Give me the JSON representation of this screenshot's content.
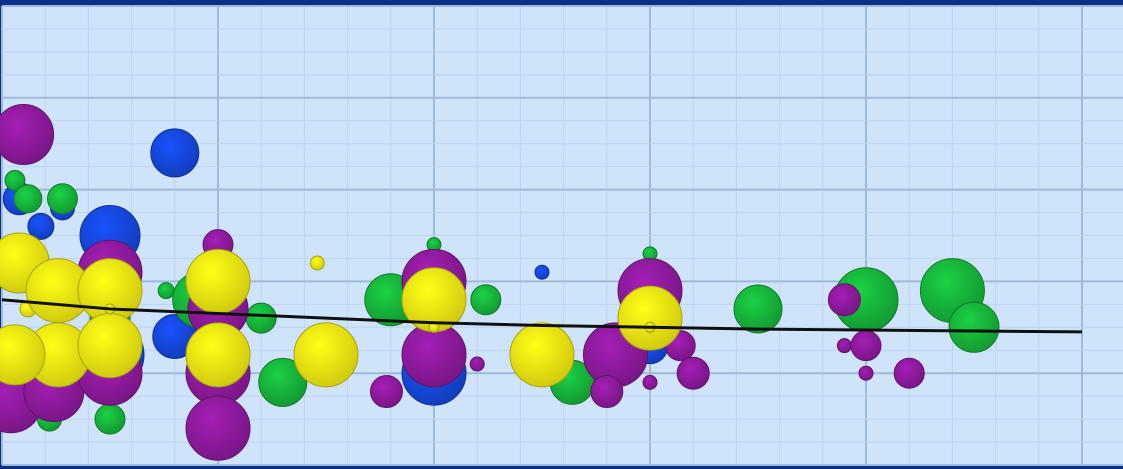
{
  "colors": {
    "frame": "#0b2f86",
    "plot_bg": "#cfe4fb",
    "grid_minor": "#bcd4ee",
    "grid_major": "#9fb9d8",
    "trend": "#111111",
    "blue": "#1546d8",
    "green": "#16b23a",
    "purple": "#8c1a9a",
    "yellow": "#f2ea12"
  },
  "chart_data": {
    "type": "scatter",
    "subtype": "bubble",
    "title": "",
    "xlabel": "",
    "ylabel": "",
    "xlim": [
      0,
      25
    ],
    "ylim": [
      0,
      5
    ],
    "grid": true,
    "legend": "none",
    "series": [
      {
        "color": "blue",
        "points": [
          [
            0.4,
            2.9,
            16
          ],
          [
            0.9,
            2.6,
            13
          ],
          [
            1.4,
            2.8,
            12
          ],
          [
            2.5,
            2.5,
            30
          ],
          [
            2.5,
            1.2,
            34
          ],
          [
            4.0,
            3.4,
            24
          ],
          [
            4.0,
            1.4,
            22
          ],
          [
            10.0,
            1.0,
            32
          ],
          [
            12.5,
            2.1,
            7
          ],
          [
            15.0,
            1.3,
            18
          ]
        ]
      },
      {
        "color": "green",
        "points": [
          [
            0.3,
            3.1,
            10
          ],
          [
            0.6,
            2.9,
            14
          ],
          [
            1.4,
            2.9,
            15
          ],
          [
            1.1,
            0.5,
            12
          ],
          [
            2.5,
            0.5,
            15
          ],
          [
            2.5,
            1.6,
            20
          ],
          [
            3.8,
            1.9,
            8
          ],
          [
            4.6,
            1.8,
            28
          ],
          [
            6.0,
            1.6,
            15
          ],
          [
            6.5,
            0.9,
            24
          ],
          [
            9.0,
            1.8,
            26
          ],
          [
            10.0,
            2.4,
            7
          ],
          [
            11.2,
            1.8,
            15
          ],
          [
            13.2,
            0.9,
            22
          ],
          [
            15.0,
            2.3,
            7
          ],
          [
            17.5,
            1.7,
            24
          ],
          [
            20.0,
            1.8,
            32
          ],
          [
            22.0,
            1.9,
            32
          ],
          [
            22.5,
            1.5,
            25
          ]
        ]
      },
      {
        "color": "purple",
        "points": [
          [
            0.5,
            3.6,
            30
          ],
          [
            0.2,
            0.7,
            32
          ],
          [
            1.2,
            0.8,
            30
          ],
          [
            2.5,
            2.1,
            32
          ],
          [
            2.5,
            1.0,
            32
          ],
          [
            5.0,
            2.4,
            15
          ],
          [
            5.0,
            1.7,
            30
          ],
          [
            5.0,
            1.0,
            32
          ],
          [
            5.0,
            0.4,
            32
          ],
          [
            8.9,
            0.8,
            16
          ],
          [
            10.0,
            2.0,
            32
          ],
          [
            10.0,
            1.2,
            32
          ],
          [
            10.0,
            1.7,
            7
          ],
          [
            11.0,
            1.1,
            7
          ],
          [
            14.2,
            1.2,
            32
          ],
          [
            14.0,
            0.8,
            16
          ],
          [
            15.0,
            1.9,
            32
          ],
          [
            15.0,
            0.9,
            7
          ],
          [
            15.7,
            1.3,
            15
          ],
          [
            16.0,
            1.0,
            16
          ],
          [
            19.5,
            1.8,
            16
          ],
          [
            19.5,
            1.3,
            7
          ],
          [
            20.0,
            1.3,
            15
          ],
          [
            20.0,
            1.0,
            7
          ],
          [
            21.0,
            1.0,
            15
          ]
        ]
      },
      {
        "color": "yellow",
        "points": [
          [
            0.4,
            2.2,
            30
          ],
          [
            0.6,
            1.7,
            8
          ],
          [
            1.3,
            1.9,
            32
          ],
          [
            1.3,
            1.2,
            32
          ],
          [
            0.3,
            1.2,
            30
          ],
          [
            2.5,
            1.9,
            32
          ],
          [
            2.5,
            1.3,
            32
          ],
          [
            2.5,
            1.7,
            5
          ],
          [
            5.0,
            2.0,
            32
          ],
          [
            5.0,
            1.2,
            32
          ],
          [
            7.3,
            2.2,
            7
          ],
          [
            7.5,
            1.2,
            32
          ],
          [
            10.0,
            1.8,
            32
          ],
          [
            10.0,
            1.5,
            5
          ],
          [
            12.5,
            1.2,
            32
          ],
          [
            15.0,
            1.6,
            32
          ],
          [
            15.0,
            1.5,
            5
          ]
        ]
      }
    ],
    "trend_line": {
      "x": [
        0,
        2.5,
        5,
        7.5,
        10,
        12.5,
        15,
        17.5,
        20,
        22.5,
        25
      ],
      "y": [
        1.8,
        1.7,
        1.65,
        1.6,
        1.55,
        1.52,
        1.5,
        1.48,
        1.47,
        1.46,
        1.45
      ]
    }
  }
}
